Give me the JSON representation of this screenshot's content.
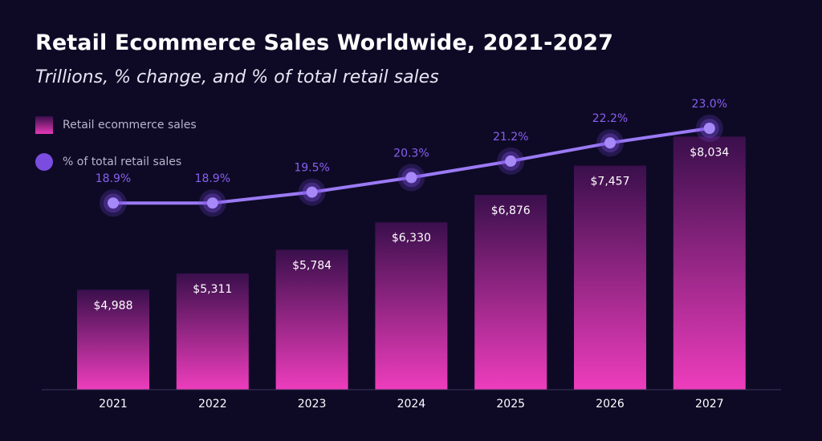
{
  "header": {
    "title": "Retail Ecommerce Sales Worldwide, 2021-2027",
    "subtitle": "Trillions, % change, and % of total retail sales"
  },
  "legend": {
    "bars_label": "Retail ecommerce sales",
    "line_label": "% of total retail sales"
  },
  "colors": {
    "background": "#0e0a26",
    "bar_top": "#3a0f4c",
    "bar_bottom": "#ee3dbd",
    "line": "#9b7af5",
    "pct_label": "#8a5ff0"
  },
  "chart_data": {
    "type": "bar",
    "categories": [
      "2021",
      "2022",
      "2023",
      "2024",
      "2025",
      "2026",
      "2027"
    ],
    "series": [
      {
        "name": "Retail ecommerce sales",
        "type": "bar",
        "values": [
          4988,
          5311,
          5784,
          6330,
          6876,
          7457,
          8034
        ],
        "labels": [
          "$4,988",
          "$5,311",
          "$5,784",
          "$6,330",
          "$6,876",
          "$7,457",
          "$8,034"
        ]
      },
      {
        "name": "% of total retail sales",
        "type": "line",
        "values": [
          18.9,
          18.9,
          19.5,
          20.3,
          21.2,
          22.2,
          23.0
        ],
        "labels": [
          "18.9%",
          "18.9%",
          "19.5%",
          "20.3%",
          "21.2%",
          "22.2%",
          "23.0%"
        ]
      }
    ],
    "ylim": [
      3000,
      8200
    ],
    "y2lim": [
      15.7,
      23.0
    ],
    "grid": false,
    "legend_position": "top-left"
  }
}
